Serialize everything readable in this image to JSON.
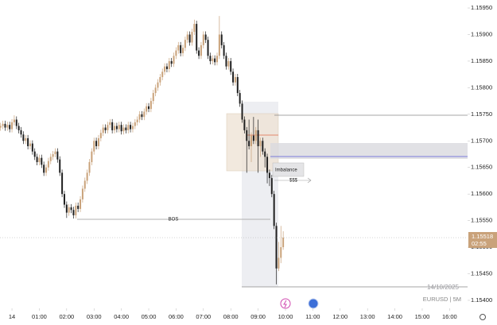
{
  "chart_data": {
    "type": "candlestick",
    "open": [
      1.15725,
      1.15728,
      1.15732,
      1.15725,
      1.1573,
      1.15722,
      1.15735,
      1.1574,
      1.15728,
      1.1572,
      1.15712,
      1.157,
      1.15705,
      1.1569,
      1.15695,
      1.1568,
      1.1567,
      1.1566,
      1.15668,
      1.15655,
      1.1564,
      1.1565,
      1.15662,
      1.1567,
      1.15675,
      1.1568,
      1.15665,
      1.1564,
      1.156,
      1.1558,
      1.15565,
      1.15575,
      1.1557,
      1.1556,
      1.15578,
      1.15572,
      1.1559,
      1.1561,
      1.15625,
      1.1564,
      1.1566,
      1.1568,
      1.157,
      1.1569,
      1.15705,
      1.15715,
      1.15725,
      1.1572,
      1.1573,
      1.15735,
      1.1572,
      1.15728,
      1.15722,
      1.1573,
      1.15718,
      1.15725,
      1.1572,
      1.1573,
      1.15722,
      1.15728,
      1.15735,
      1.1574,
      1.1575,
      1.15745,
      1.15755,
      1.15765,
      1.1576,
      1.15775,
      1.1579,
      1.158,
      1.1581,
      1.1582,
      1.1583,
      1.1584,
      1.15835,
      1.1585,
      1.15845,
      1.1586,
      1.1587,
      1.1588,
      1.15865,
      1.15875,
      1.1589,
      1.159,
      1.15885,
      1.15905,
      1.1592,
      1.1587,
      1.1586,
      1.1588,
      1.159,
      1.1589,
      1.1586,
      1.1585,
      1.15855,
      1.15848,
      1.1586,
      1.159,
      1.1588,
      1.1586,
      1.1584,
      1.1585,
      1.1583,
      1.1581,
      1.1582,
      1.1579,
      1.1577,
      1.1574,
      1.1572,
      1.157,
      1.1569,
      1.1571,
      1.157,
      1.1572,
      1.1569,
      1.157,
      1.1568,
      1.1567,
      1.1564,
      1.1563,
      1.156,
      1.1554,
      1.1546,
      1.1548,
      1.155
    ],
    "high": [
      1.15734,
      1.15738,
      1.15738,
      1.15736,
      1.15736,
      1.15741,
      1.15748,
      1.15746,
      1.15734,
      1.15726,
      1.15718,
      1.15711,
      1.15711,
      1.15701,
      1.15701,
      1.15686,
      1.15676,
      1.15674,
      1.15674,
      1.15661,
      1.15656,
      1.15668,
      1.15676,
      1.15681,
      1.15686,
      1.15686,
      1.15671,
      1.15646,
      1.15606,
      1.15586,
      1.15581,
      1.15581,
      1.15576,
      1.15584,
      1.15584,
      1.15596,
      1.15616,
      1.15631,
      1.15646,
      1.15666,
      1.15686,
      1.15706,
      1.15706,
      1.15711,
      1.15721,
      1.15731,
      1.15731,
      1.15736,
      1.15741,
      1.15741,
      1.15734,
      1.15734,
      1.15736,
      1.15736,
      1.15731,
      1.15731,
      1.15736,
      1.15736,
      1.15734,
      1.15741,
      1.15746,
      1.15756,
      1.15756,
      1.15761,
      1.15771,
      1.15771,
      1.15781,
      1.15796,
      1.15806,
      1.15816,
      1.15826,
      1.15836,
      1.15846,
      1.15846,
      1.15856,
      1.15856,
      1.15866,
      1.15876,
      1.15886,
      1.15886,
      1.15881,
      1.15896,
      1.15906,
      1.15906,
      1.15911,
      1.15928,
      1.15926,
      1.15876,
      1.15886,
      1.15906,
      1.15906,
      1.15896,
      1.15866,
      1.15861,
      1.15861,
      1.15866,
      1.15935,
      1.15906,
      1.15886,
      1.15866,
      1.15856,
      1.15856,
      1.15836,
      1.15826,
      1.15826,
      1.15796,
      1.15776,
      1.15746,
      1.15726,
      1.1574,
      1.15716,
      1.15745,
      1.15726,
      1.1574,
      1.15706,
      1.15706,
      1.15686,
      1.15676,
      1.15646,
      1.15636,
      1.15606,
      1.15546,
      1.1551,
      1.1554,
      1.1553
    ],
    "low": [
      1.15719,
      1.15722,
      1.15719,
      1.15719,
      1.15716,
      1.15716,
      1.15729,
      1.15722,
      1.15714,
      1.15706,
      1.15694,
      1.15694,
      1.15684,
      1.15684,
      1.15674,
      1.15664,
      1.15654,
      1.15654,
      1.15649,
      1.15634,
      1.15634,
      1.15644,
      1.15656,
      1.15664,
      1.15669,
      1.15659,
      1.15634,
      1.15594,
      1.15574,
      1.15555,
      1.15559,
      1.15564,
      1.15554,
      1.15554,
      1.15566,
      1.15566,
      1.15584,
      1.15604,
      1.15619,
      1.15634,
      1.15654,
      1.15674,
      1.15684,
      1.15684,
      1.15699,
      1.15709,
      1.15714,
      1.15714,
      1.15724,
      1.15714,
      1.15714,
      1.15716,
      1.15716,
      1.15712,
      1.15712,
      1.15714,
      1.15714,
      1.15716,
      1.15716,
      1.15722,
      1.15729,
      1.15734,
      1.15739,
      1.15739,
      1.15749,
      1.15754,
      1.15754,
      1.15769,
      1.15784,
      1.15794,
      1.15804,
      1.15814,
      1.15824,
      1.15829,
      1.15829,
      1.15839,
      1.15839,
      1.15854,
      1.15864,
      1.15859,
      1.15859,
      1.15869,
      1.15884,
      1.15879,
      1.15879,
      1.15899,
      1.15864,
      1.15854,
      1.15854,
      1.15874,
      1.15884,
      1.15854,
      1.15844,
      1.15844,
      1.15842,
      1.15842,
      1.15854,
      1.15874,
      1.15854,
      1.15834,
      1.15834,
      1.15824,
      1.15804,
      1.15804,
      1.15784,
      1.15764,
      1.15734,
      1.15714,
      1.1564,
      1.15684,
      1.1566,
      1.15694,
      1.15694,
      1.1564,
      1.1567,
      1.15674,
      1.1565,
      1.1562,
      1.15615,
      1.15594,
      1.15534,
      1.1543,
      1.15455,
      1.1547,
      1.15495
    ],
    "close": [
      1.15728,
      1.15732,
      1.15725,
      1.1573,
      1.15722,
      1.15735,
      1.1574,
      1.15728,
      1.1572,
      1.15712,
      1.157,
      1.15705,
      1.1569,
      1.15695,
      1.1568,
      1.1567,
      1.1566,
      1.15668,
      1.15655,
      1.1564,
      1.1565,
      1.15662,
      1.1567,
      1.15675,
      1.1568,
      1.15665,
      1.1564,
      1.156,
      1.1558,
      1.15565,
      1.15575,
      1.1557,
      1.1556,
      1.15578,
      1.15572,
      1.1559,
      1.1561,
      1.15625,
      1.1564,
      1.1566,
      1.1568,
      1.157,
      1.1569,
      1.15705,
      1.15715,
      1.15725,
      1.1572,
      1.1573,
      1.15735,
      1.1572,
      1.15728,
      1.15722,
      1.1573,
      1.15718,
      1.15725,
      1.1572,
      1.1573,
      1.15722,
      1.15728,
      1.15735,
      1.1574,
      1.1575,
      1.15745,
      1.15755,
      1.15765,
      1.1576,
      1.15775,
      1.1579,
      1.158,
      1.1581,
      1.1582,
      1.1583,
      1.1584,
      1.15835,
      1.1585,
      1.15845,
      1.1586,
      1.1587,
      1.1588,
      1.15865,
      1.15875,
      1.1589,
      1.159,
      1.15885,
      1.15905,
      1.1592,
      1.1587,
      1.1586,
      1.1588,
      1.159,
      1.1589,
      1.1586,
      1.1585,
      1.15855,
      1.15848,
      1.1586,
      1.159,
      1.1588,
      1.1586,
      1.1584,
      1.1585,
      1.1583,
      1.1581,
      1.1582,
      1.1579,
      1.1577,
      1.1574,
      1.1572,
      1.157,
      1.1569,
      1.1571,
      1.157,
      1.1572,
      1.1569,
      1.157,
      1.1568,
      1.1567,
      1.1564,
      1.1563,
      1.156,
      1.1554,
      1.1546,
      1.1548,
      1.155,
      1.15518
    ],
    "up_color": "#c9a27a",
    "down_color": "#1f1f1f",
    "xlim": [
      -0.25,
      204.9
    ],
    "xticks": [
      {
        "value": 5,
        "label": "14"
      },
      {
        "value": 17,
        "label": "01:00"
      },
      {
        "value": 29,
        "label": "02:00"
      },
      {
        "value": 41,
        "label": "03:00"
      },
      {
        "value": 53,
        "label": "04:00"
      },
      {
        "value": 65,
        "label": "05:00"
      },
      {
        "value": 77,
        "label": "06:00"
      },
      {
        "value": 89,
        "label": "07:00"
      },
      {
        "value": 101,
        "label": "08:00"
      },
      {
        "value": 113,
        "label": "09:00"
      },
      {
        "value": 125,
        "label": "10:00"
      },
      {
        "value": 137,
        "label": "11:00"
      },
      {
        "value": 149,
        "label": "12:00"
      },
      {
        "value": 161,
        "label": "13:00"
      },
      {
        "value": 173,
        "label": "14:00"
      },
      {
        "value": 185,
        "label": "15:00"
      },
      {
        "value": 197,
        "label": "16:00"
      }
    ],
    "ylim": [
      1.15385,
      1.15965
    ],
    "yticks": [
      {
        "value": 1.1595,
        "label": "1.15950"
      },
      {
        "value": 1.159,
        "label": "1.15900"
      },
      {
        "value": 1.1585,
        "label": "1.15850"
      },
      {
        "value": 1.158,
        "label": "1.15800"
      },
      {
        "value": 1.1575,
        "label": "1.15750"
      },
      {
        "value": 1.157,
        "label": "1.15700"
      },
      {
        "value": 1.1565,
        "label": "1.15650"
      },
      {
        "value": 1.156,
        "label": "1.15600"
      },
      {
        "value": 1.1555,
        "label": "1.15550"
      },
      {
        "value": 1.155,
        "label": "1.15500"
      },
      {
        "value": 1.1545,
        "label": "1.15450"
      },
      {
        "value": 1.154,
        "label": "1.15400"
      }
    ],
    "annotations": {
      "bos": "BOS",
      "imbalance": "Imbalance",
      "liquidity": "$$$"
    },
    "watermark": {
      "date": "14/10/2025",
      "symbol": "EURUSD | 5M"
    },
    "price_label": {
      "price": "1.15518",
      "countdown": "02:55"
    }
  }
}
